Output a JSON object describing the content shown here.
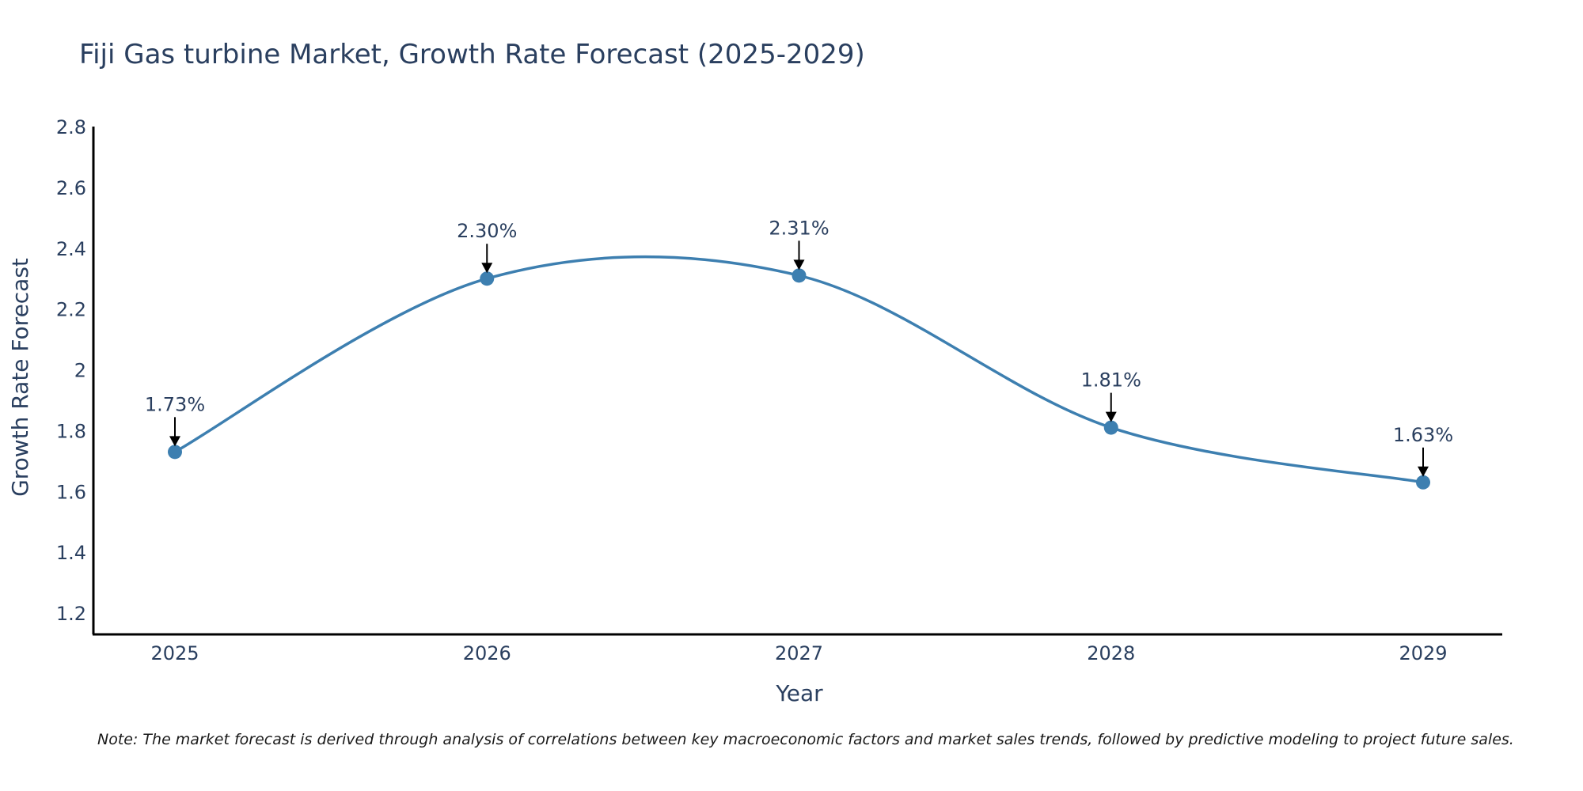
{
  "chart_data": {
    "type": "line",
    "title": "Fiji Gas turbine Market, Growth Rate Forecast (2025-2029)",
    "xlabel": "Year",
    "ylabel": "Growth Rate Forecast",
    "categories": [
      "2025",
      "2026",
      "2027",
      "2028",
      "2029"
    ],
    "values": [
      1.73,
      2.3,
      2.31,
      1.81,
      1.63
    ],
    "annotations": [
      "1.73%",
      "2.30%",
      "2.31%",
      "1.81%",
      "1.63%"
    ],
    "ylim": [
      1.13,
      2.8
    ],
    "yticks": [
      1.2,
      1.4,
      1.6,
      1.8,
      2.0,
      2.2,
      2.4,
      2.6,
      2.8
    ],
    "ytick_labels": [
      "1.2",
      "1.4",
      "1.6",
      "1.8",
      "2",
      "2.2",
      "2.4",
      "2.6",
      "2.8"
    ],
    "line_shape": "spline",
    "grid": false,
    "line_color": "#3d7fb0",
    "marker_color": "#3d7fb0",
    "axis_color": "#000000",
    "note": "Note: The market forecast is derived through analysis of correlations between key macroeconomic factors and market sales trends, followed by predictive modeling to project future sales."
  }
}
